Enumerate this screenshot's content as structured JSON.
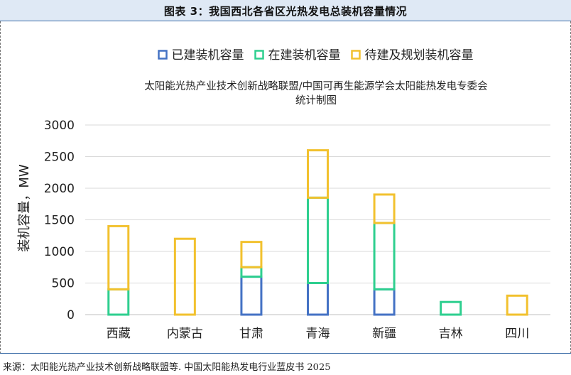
{
  "header": {
    "title": "图表 3：我国西北各省区光热发电总装机容量情况"
  },
  "source": "来源：太阳能光热产业技术创新战略联盟等. 中国太阳能热发电行业蓝皮书 2025",
  "chart_data": {
    "type": "bar",
    "stacked": true,
    "annotation_lines": [
      "太阳能光热产业技术创新战略联盟/中国可再生能源学会太阳能热发电专委会",
      "统计制图"
    ],
    "ylabel": "装机容量，MW",
    "xlabel": "",
    "ylim": [
      0,
      3000
    ],
    "yticks": [
      0,
      500,
      1000,
      1500,
      2000,
      2500,
      3000
    ],
    "grid": true,
    "legend_position": "top",
    "categories": [
      "西藏",
      "内蒙古",
      "甘肃",
      "青海",
      "新疆",
      "吉林",
      "四川"
    ],
    "series": [
      {
        "name": "已建装机容量",
        "color": "#4472c4",
        "values": [
          0,
          0,
          600,
          500,
          400,
          0,
          0
        ]
      },
      {
        "name": "在建装机容量",
        "color": "#2ecf8f",
        "values": [
          400,
          0,
          150,
          1350,
          1050,
          200,
          0
        ]
      },
      {
        "name": "待建及规划装机容量",
        "color": "#f2c12e",
        "values": [
          1000,
          1200,
          400,
          750,
          450,
          0,
          300
        ]
      }
    ]
  }
}
